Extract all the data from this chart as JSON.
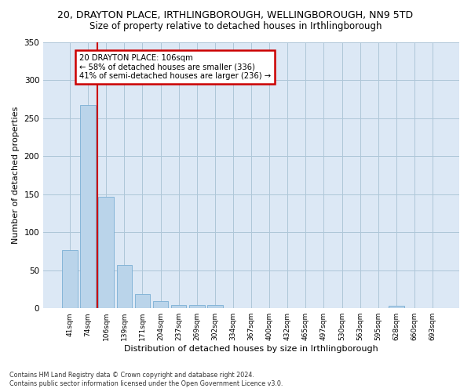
{
  "title": "20, DRAYTON PLACE, IRTHLINGBOROUGH, WELLINGBOROUGH, NN9 5TD",
  "subtitle": "Size of property relative to detached houses in Irthlingborough",
  "xlabel": "Distribution of detached houses by size in Irthlingborough",
  "ylabel": "Number of detached properties",
  "categories": [
    "41sqm",
    "74sqm",
    "106sqm",
    "139sqm",
    "171sqm",
    "204sqm",
    "237sqm",
    "269sqm",
    "302sqm",
    "334sqm",
    "367sqm",
    "400sqm",
    "432sqm",
    "465sqm",
    "497sqm",
    "530sqm",
    "563sqm",
    "595sqm",
    "628sqm",
    "660sqm",
    "693sqm"
  ],
  "values": [
    77,
    267,
    147,
    57,
    19,
    10,
    4,
    4,
    4,
    0,
    0,
    0,
    0,
    0,
    0,
    0,
    0,
    0,
    3,
    0,
    0
  ],
  "bar_color": "#bad4ea",
  "bar_edgecolor": "#7bafd4",
  "vline_color": "#cc0000",
  "annotation_text": "20 DRAYTON PLACE: 106sqm\n← 58% of detached houses are smaller (336)\n41% of semi-detached houses are larger (236) →",
  "annotation_box_color": "#cc0000",
  "ylim": [
    0,
    350
  ],
  "yticks": [
    0,
    50,
    100,
    150,
    200,
    250,
    300,
    350
  ],
  "grid_color": "#aec6d8",
  "bg_color": "#dce8f5",
  "footer": "Contains HM Land Registry data © Crown copyright and database right 2024.\nContains public sector information licensed under the Open Government Licence v3.0.",
  "title_fontsize": 9,
  "subtitle_fontsize": 8.5,
  "xlabel_fontsize": 8,
  "ylabel_fontsize": 8
}
